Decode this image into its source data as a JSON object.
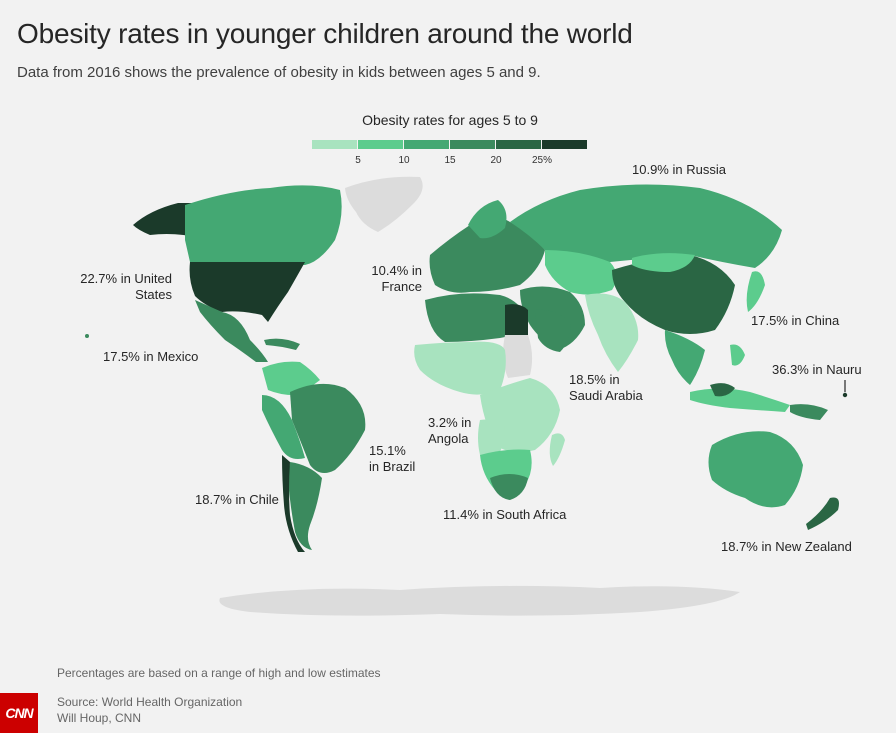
{
  "header": {
    "title": "Obesity rates in younger children around the world",
    "subtitle": "Data from 2016 shows the prevalence of obesity in kids between ages 5 and 9."
  },
  "legend": {
    "title": "Obesity rates for ages 5 to 9",
    "colors": [
      "#a8e3bf",
      "#5ccc8d",
      "#44a873",
      "#3b8a5e",
      "#2a6644",
      "#1b3a2a"
    ],
    "ticks": [
      "5",
      "10",
      "15",
      "20",
      "25%"
    ]
  },
  "annotations": {
    "russia": "10.9% in Russia",
    "usa_line1": "22.7% in United",
    "usa_line2": "States",
    "france_line1": "10.4% in",
    "france_line2": "France",
    "mexico": "17.5% in Mexico",
    "china": "17.5% in China",
    "nauru": "36.3% in Nauru",
    "saudi_line1": "18.5% in",
    "saudi_line2": "Saudi Arabia",
    "angola_line1": "3.2% in",
    "angola_line2": "Angola",
    "brazil_line1": "15.1%",
    "brazil_line2": "in Brazil",
    "chile": "18.7% in Chile",
    "south_africa": "11.4% in South Africa",
    "new_zealand": "18.7% in New Zealand"
  },
  "colors": {
    "no_data": "#dcdcdc",
    "background": "#f2f2f2",
    "brand": "#cc0000"
  },
  "map_data": {
    "metric": "Obesity rate, ages 5 to 9 (%)",
    "highlighted": [
      {
        "country": "Russia",
        "value": 10.9
      },
      {
        "country": "United States",
        "value": 22.7
      },
      {
        "country": "France",
        "value": 10.4
      },
      {
        "country": "Mexico",
        "value": 17.5
      },
      {
        "country": "China",
        "value": 17.5
      },
      {
        "country": "Nauru",
        "value": 36.3
      },
      {
        "country": "Saudi Arabia",
        "value": 18.5
      },
      {
        "country": "Angola",
        "value": 3.2
      },
      {
        "country": "Brazil",
        "value": 15.1
      },
      {
        "country": "Chile",
        "value": 18.7
      },
      {
        "country": "South Africa",
        "value": 11.4
      },
      {
        "country": "New Zealand",
        "value": 18.7
      }
    ]
  },
  "footer": {
    "note": "Percentages are based on a range of high and low estimates",
    "source": "Source: World Health Organization",
    "credit": "Will Houp, CNN",
    "logo": "CNN"
  }
}
